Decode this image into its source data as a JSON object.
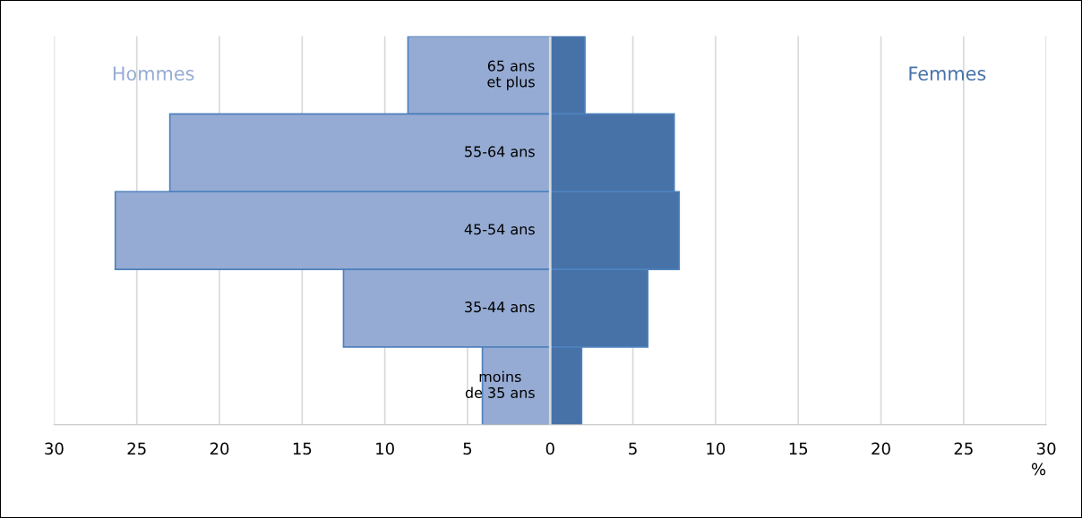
{
  "chart_data": {
    "type": "bar",
    "orientation": "horizontal",
    "xlabel": "%",
    "categories": [
      "65 ans\net plus",
      "55-64 ans",
      "45-54 ans",
      "35-44 ans",
      "moins\nde 35 ans"
    ],
    "series": [
      {
        "name": "Hommes",
        "color": "#95abd3",
        "values": [
          -8.6,
          -23.0,
          -26.3,
          -12.5,
          -4.1
        ]
      },
      {
        "name": "Femmes",
        "color": "#4672a8",
        "values": [
          2.1,
          7.5,
          7.8,
          5.9,
          1.9
        ]
      }
    ],
    "xlim": [
      -30,
      30
    ],
    "xticks": [
      {
        "value": -30,
        "label": "30"
      },
      {
        "value": -25,
        "label": "25"
      },
      {
        "value": -20,
        "label": "20"
      },
      {
        "value": -15,
        "label": "15"
      },
      {
        "value": -10,
        "label": "10"
      },
      {
        "value": -5,
        "label": "5"
      },
      0,
      5,
      10,
      15,
      20,
      25,
      30
    ],
    "grid": "x",
    "legend": false,
    "stacked": true
  }
}
